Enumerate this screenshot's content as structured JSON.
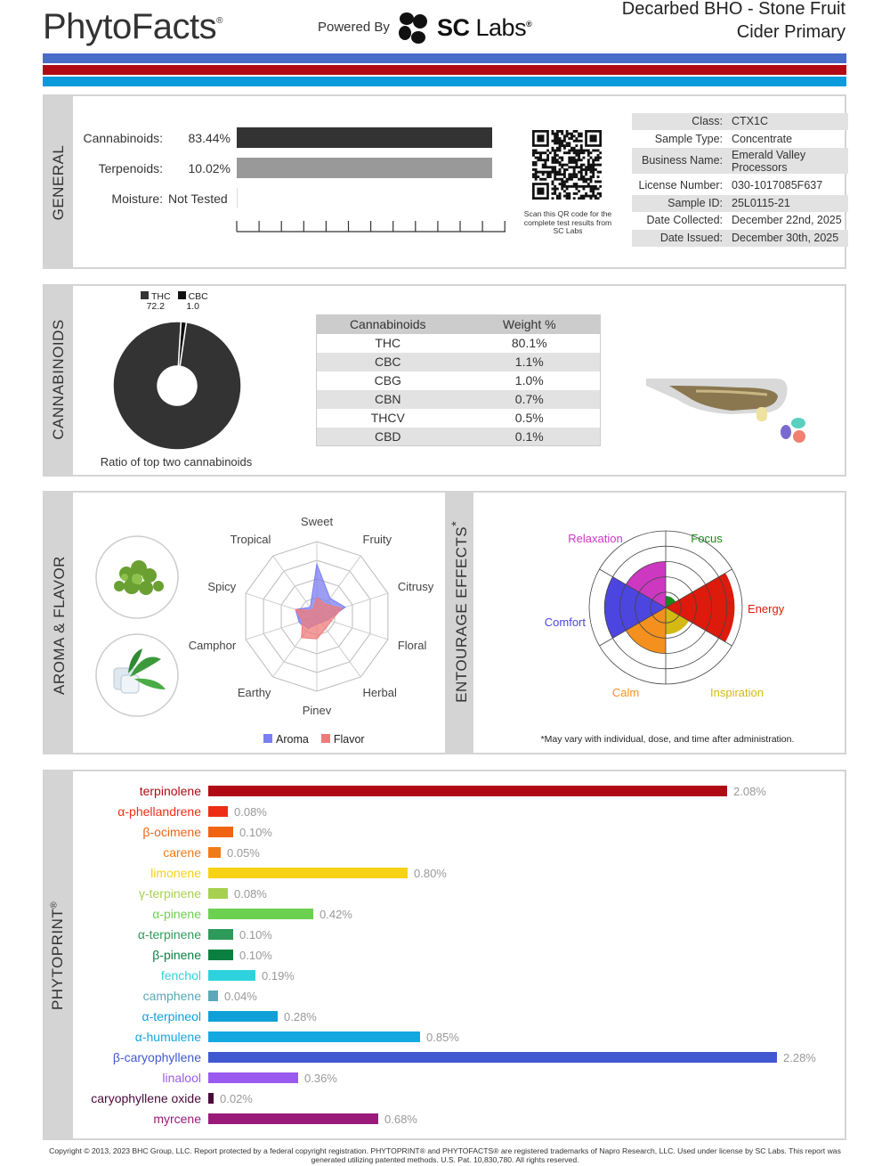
{
  "header": {
    "brand": "PhytoFacts",
    "brand_mark": "®",
    "powered_by": "Powered By",
    "lab_name_bold": "SC",
    "lab_name_rest": " Labs",
    "lab_mark": "®",
    "product_line1": "Decarbed BHO - Stone Fruit",
    "product_line2": "Cider Primary",
    "stripe_colors": [
      "#4a6cc9",
      "#b00b14",
      "#0b9bdc"
    ]
  },
  "general": {
    "section_label": "GENERAL",
    "metrics": [
      {
        "label": "Cannabinoids:",
        "value": "83.44%",
        "fraction": 0.8344,
        "color": "#333333"
      },
      {
        "label": "Terpenoids:",
        "value": "10.02%",
        "fraction": 0.1002,
        "color": "#999999"
      },
      {
        "label": "Moisture:",
        "value": "Not Tested",
        "fraction": 0,
        "color": "#cccccc"
      }
    ],
    "qr_caption": "Scan this QR code for the complete test results from SC Labs",
    "info": [
      {
        "key": "Class:",
        "value": "CTX1C"
      },
      {
        "key": "Sample Type:",
        "value": "Concentrate"
      },
      {
        "key": "Business Name:",
        "value": "Emerald Valley Processors"
      },
      {
        "key": "License Number:",
        "value": "030-1017085F637"
      },
      {
        "key": "Sample ID:",
        "value": "25L0115-21"
      },
      {
        "key": "Date Collected:",
        "value": "December 22nd, 2025"
      },
      {
        "key": "Date Issued:",
        "value": "December 30th, 2025"
      }
    ]
  },
  "cannabinoids": {
    "section_label": "CANNABINOIDS",
    "donut_legend": [
      {
        "name": "THC",
        "ratio": "72.2",
        "color": "#333333"
      },
      {
        "name": "CBC",
        "ratio": "1.0",
        "color": "#111111"
      }
    ],
    "donut_caption": "Ratio of top two cannabinoids",
    "table_headers": [
      "Cannabinoids",
      "Weight %"
    ],
    "rows": [
      {
        "name": "THC",
        "weight": "80.1%"
      },
      {
        "name": "CBC",
        "weight": "1.1%"
      },
      {
        "name": "CBG",
        "weight": "1.0%"
      },
      {
        "name": "CBN",
        "weight": "0.7%"
      },
      {
        "name": "THCV",
        "weight": "0.5%"
      },
      {
        "name": "CBD",
        "weight": "0.1%"
      }
    ]
  },
  "aroma": {
    "section_label": "AROMA & FLAVOR",
    "axes": [
      "Sweet",
      "Fruity",
      "Citrusy",
      "Floral",
      "Herbal",
      "Piney",
      "Earthy",
      "Camphor",
      "Spicy",
      "Tropical"
    ],
    "legend": [
      {
        "name": "Aroma",
        "color": "#7b7ef0"
      },
      {
        "name": "Flavor",
        "color": "#ee7b7b"
      }
    ],
    "aroma_values": [
      0.7,
      0.3,
      0.4,
      0.15,
      0.1,
      0.1,
      0.2,
      0.25,
      0.3,
      0.15
    ],
    "flavor_values": [
      0.25,
      0.2,
      0.35,
      0.2,
      0.2,
      0.3,
      0.35,
      0.2,
      0.3,
      0.1
    ]
  },
  "entourage": {
    "section_label": "ENTOURAGE EFFECTS",
    "label_mark": "*",
    "effects": [
      {
        "name": "Focus",
        "color": "#1a8a1a",
        "level": 0.15
      },
      {
        "name": "Energy",
        "color": "#dd1a0c",
        "level": 0.9
      },
      {
        "name": "Inspiration",
        "color": "#d4b814",
        "level": 0.35
      },
      {
        "name": "Calm",
        "color": "#f4911e",
        "level": 0.6
      },
      {
        "name": "Comfort",
        "color": "#4d45e0",
        "level": 0.8
      },
      {
        "name": "Relaxation",
        "color": "#cc38c0",
        "level": 0.6
      }
    ],
    "disclaimer": "*May vary with individual, dose, and time after administration."
  },
  "phytoprint": {
    "section_label": "PHYTOPRINT",
    "label_mark": "®",
    "terpenes": [
      {
        "name": "terpinolene",
        "value": 2.08,
        "label": "2.08%",
        "color": "#b00b14"
      },
      {
        "name": "α-phellandrene",
        "value": 0.08,
        "label": "0.08%",
        "color": "#ec2f14"
      },
      {
        "name": "β-ocimene",
        "value": 0.1,
        "label": "0.10%",
        "color": "#f06414"
      },
      {
        "name": "carene",
        "value": 0.05,
        "label": "0.05%",
        "color": "#f27a14"
      },
      {
        "name": "limonene",
        "value": 0.8,
        "label": "0.80%",
        "color": "#f8d214"
      },
      {
        "name": "γ-terpinene",
        "value": 0.08,
        "label": "0.08%",
        "color": "#a8d050"
      },
      {
        "name": "α-pinene",
        "value": 0.42,
        "label": "0.42%",
        "color": "#6cd050"
      },
      {
        "name": "α-terpinene",
        "value": 0.1,
        "label": "0.10%",
        "color": "#2e9a5a"
      },
      {
        "name": "β-pinene",
        "value": 0.1,
        "label": "0.10%",
        "color": "#0a8040"
      },
      {
        "name": "fenchol",
        "value": 0.19,
        "label": "0.19%",
        "color": "#2ed2dc"
      },
      {
        "name": "camphene",
        "value": 0.04,
        "label": "0.04%",
        "color": "#5aa8b8"
      },
      {
        "name": "α-terpineol",
        "value": 0.28,
        "label": "0.28%",
        "color": "#10a0d8"
      },
      {
        "name": "α-humulene",
        "value": 0.85,
        "label": "0.85%",
        "color": "#14a8e0"
      },
      {
        "name": "β-caryophyllene",
        "value": 2.28,
        "label": "2.28%",
        "color": "#4058d0"
      },
      {
        "name": "linalool",
        "value": 0.36,
        "label": "0.36%",
        "color": "#9a5af0"
      },
      {
        "name": "caryophyllene oxide",
        "value": 0.02,
        "label": "0.02%",
        "color": "#4a0a3a"
      },
      {
        "name": "myrcene",
        "value": 0.68,
        "label": "0.68%",
        "color": "#9a1a7a"
      }
    ]
  },
  "footer": {
    "text": "Copyright © 2013, 2023 BHC Group, LLC. Report protected by a federal copyright registration. PHYTOPRINT® and PHYTOFACTS® are registered trademarks of Napro Research, LLC. Used under license by SC Labs. This report was generated utilizing patented methods. U.S. Pat. 10,830,780. All rights reserved."
  }
}
